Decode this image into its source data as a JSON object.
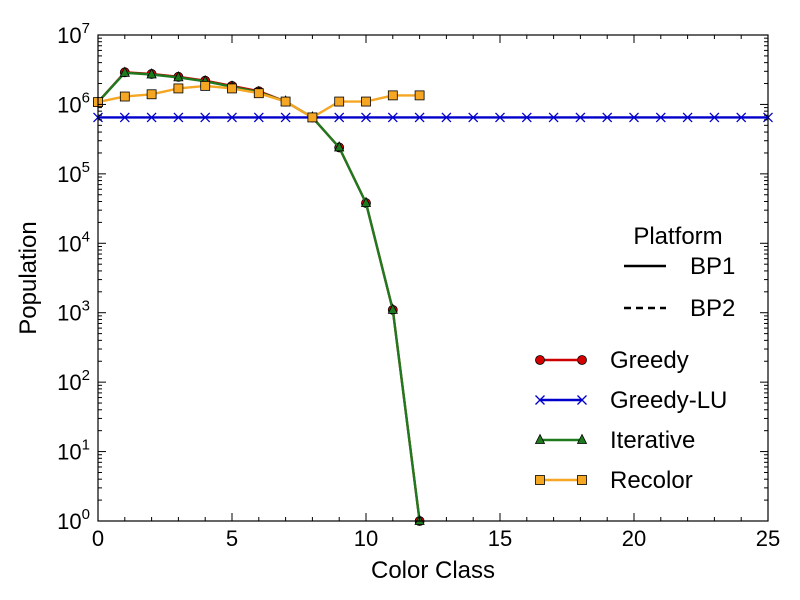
{
  "chart_data": {
    "type": "line",
    "xlabel": "Color Class",
    "ylabel": "Population",
    "xlim": [
      0,
      25
    ],
    "ylim": [
      1,
      10000000
    ],
    "yscale": "log",
    "x_ticks": [
      0,
      5,
      10,
      15,
      20,
      25
    ],
    "y_tick_exponents": [
      0,
      1,
      2,
      3,
      4,
      5,
      6,
      7
    ],
    "y_tick_base": "10",
    "grid": false,
    "legend": {
      "placement": "right",
      "platform_title": "Platform",
      "platforms": [
        {
          "name": "BP1",
          "dash": "solid"
        },
        {
          "name": "BP2",
          "dash": "dashed"
        }
      ]
    },
    "series": [
      {
        "name": "Greedy",
        "color": "#cc0000",
        "marker": "circle",
        "fill": "#d40000",
        "x": [
          0,
          1,
          2,
          3,
          4,
          5,
          6,
          7,
          8,
          9,
          10,
          11,
          12
        ],
        "values": [
          1080000,
          2900000,
          2750000,
          2500000,
          2200000,
          1850000,
          1550000,
          1100000,
          650000,
          240000,
          38000,
          1100,
          1
        ]
      },
      {
        "name": "Greedy-LU",
        "color": "#0000cc",
        "marker": "x",
        "fill": "#0000cc",
        "x": [
          0,
          1,
          2,
          3,
          4,
          5,
          6,
          7,
          8,
          9,
          10,
          11,
          12,
          13,
          14,
          15,
          16,
          17,
          18,
          19,
          20,
          21,
          22,
          23,
          24,
          25
        ],
        "values": [
          650000,
          650000,
          650000,
          650000,
          650000,
          650000,
          650000,
          650000,
          650000,
          650000,
          650000,
          650000,
          650000,
          650000,
          650000,
          650000,
          650000,
          650000,
          650000,
          650000,
          650000,
          650000,
          650000,
          650000,
          650000,
          650000
        ]
      },
      {
        "name": "Iterative",
        "color": "#1e7a1e",
        "marker": "triangle",
        "fill": "#1e7a1e",
        "x": [
          0,
          1,
          2,
          3,
          4,
          5,
          6,
          7,
          8,
          9,
          10,
          11,
          12
        ],
        "values": [
          1080000,
          2850000,
          2700000,
          2450000,
          2150000,
          1800000,
          1500000,
          1100000,
          650000,
          240000,
          38000,
          1100,
          1
        ]
      },
      {
        "name": "Recolor",
        "color": "#f5a623",
        "marker": "square",
        "fill": "#f5a623",
        "x": [
          0,
          1,
          2,
          3,
          4,
          5,
          6,
          7,
          8,
          9,
          10,
          11,
          12
        ],
        "values": [
          1080000,
          1300000,
          1400000,
          1700000,
          1850000,
          1700000,
          1450000,
          1100000,
          650000,
          1100000,
          1100000,
          1350000,
          1350000
        ]
      }
    ]
  }
}
